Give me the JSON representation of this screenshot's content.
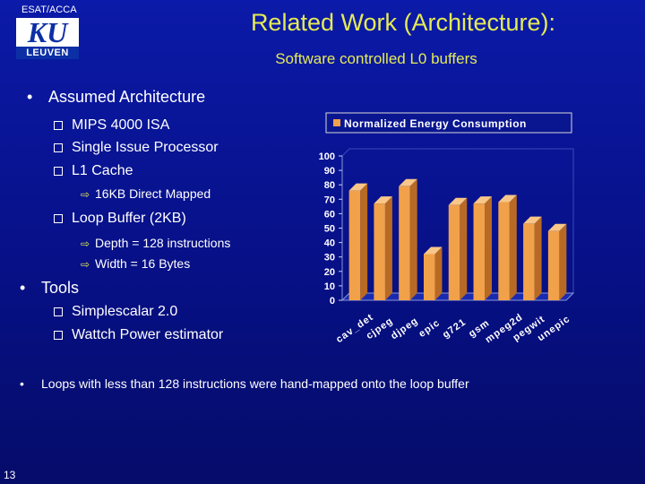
{
  "header": {
    "org_label": "ESAT/ACCA",
    "logo_top": "KU",
    "logo_bottom": "LEUVEN",
    "title": "Related Work (Architecture):",
    "subtitle": "Software controlled L0 buffers"
  },
  "content": {
    "assumed": "Assumed Architecture",
    "arch_items": [
      "MIPS 4000 ISA",
      "Single Issue Processor",
      "L1 Cache"
    ],
    "cache_detail": "16KB Direct Mapped",
    "loop_buffer": "Loop Buffer (2KB)",
    "loop_details": [
      "Depth = 128 instructions",
      "Width = 16 Bytes"
    ],
    "tools": "Tools",
    "tool_items": [
      "Simplescalar 2.0",
      "Wattch Power estimator"
    ],
    "footnote": "Loops with less than 128 instructions were hand-mapped onto the loop buffer",
    "page_number": "13"
  },
  "colors": {
    "title_yellow": "#e4ea55",
    "bar_face": "#f1a14a",
    "background": "#0b1aa8"
  },
  "chart_data": {
    "type": "bar",
    "title": "",
    "legend": [
      "Normalized Energy Consumption"
    ],
    "legend_position": "top",
    "categories": [
      "cav_det",
      "cjpeg",
      "djpeg",
      "epic",
      "g721",
      "gsm",
      "mpeg2d",
      "pegwit",
      "unepic"
    ],
    "series": [
      {
        "name": "Normalized Energy Consumption",
        "values": [
          76,
          67,
          79,
          32,
          66,
          67,
          68,
          53,
          48
        ]
      }
    ],
    "ylim": [
      0,
      100
    ],
    "yticks": [
      0,
      10,
      20,
      30,
      40,
      50,
      60,
      70,
      80,
      90,
      100
    ],
    "grid": false,
    "style": "3d"
  }
}
